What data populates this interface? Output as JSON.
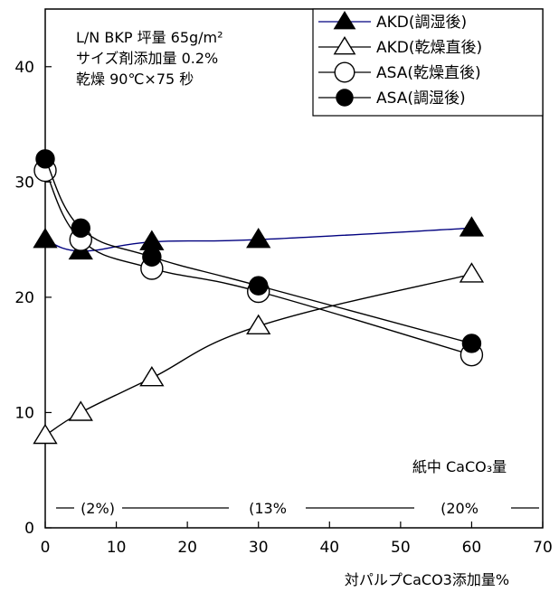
{
  "chart_data": {
    "type": "line",
    "x_axis": {
      "range": [
        0,
        70
      ],
      "ticks": [
        0,
        10,
        20,
        30,
        40,
        50,
        60,
        70
      ],
      "label": "対パルプCaCO3添加量%"
    },
    "y_axis": {
      "range": [
        0,
        45
      ],
      "ticks": [
        0,
        10,
        20,
        30,
        40
      ],
      "label": ""
    },
    "grid": false,
    "legend_position": "top-right",
    "series": [
      {
        "name": "AKD(調湿後)",
        "marker": "filled-triangle",
        "line_color": "#00007f",
        "x": [
          0,
          5,
          15,
          30,
          60
        ],
        "y": [
          25,
          24,
          24.8,
          25,
          26
        ]
      },
      {
        "name": "AKD(乾燥直後)",
        "marker": "open-triangle",
        "line_color": "#000000",
        "x": [
          0,
          5,
          15,
          30,
          60
        ],
        "y": [
          8,
          10,
          13,
          17.5,
          22
        ]
      },
      {
        "name": "ASA(乾燥直後)",
        "marker": "open-circle",
        "line_color": "#000000",
        "x": [
          0,
          5,
          15,
          30,
          60
        ],
        "y": [
          31,
          25,
          22.5,
          20.5,
          15
        ]
      },
      {
        "name": "ASA(調湿後)",
        "marker": "filled-circle",
        "line_color": "#000000",
        "x": [
          0,
          5,
          15,
          30,
          60
        ],
        "y": [
          32,
          26,
          23.5,
          21,
          16
        ]
      }
    ],
    "annotations": {
      "conditions": [
        "L/N BKP 坪量 65g/m²",
        "サイズ剤添加量 0.2%",
        "乾燥 90℃×75 秒"
      ],
      "caco3_title": "紙中 CaCO₃量",
      "caco3_levels": [
        {
          "label": "(2%)"
        },
        {
          "label": "(13%"
        },
        {
          "label": "(20%"
        }
      ]
    }
  }
}
